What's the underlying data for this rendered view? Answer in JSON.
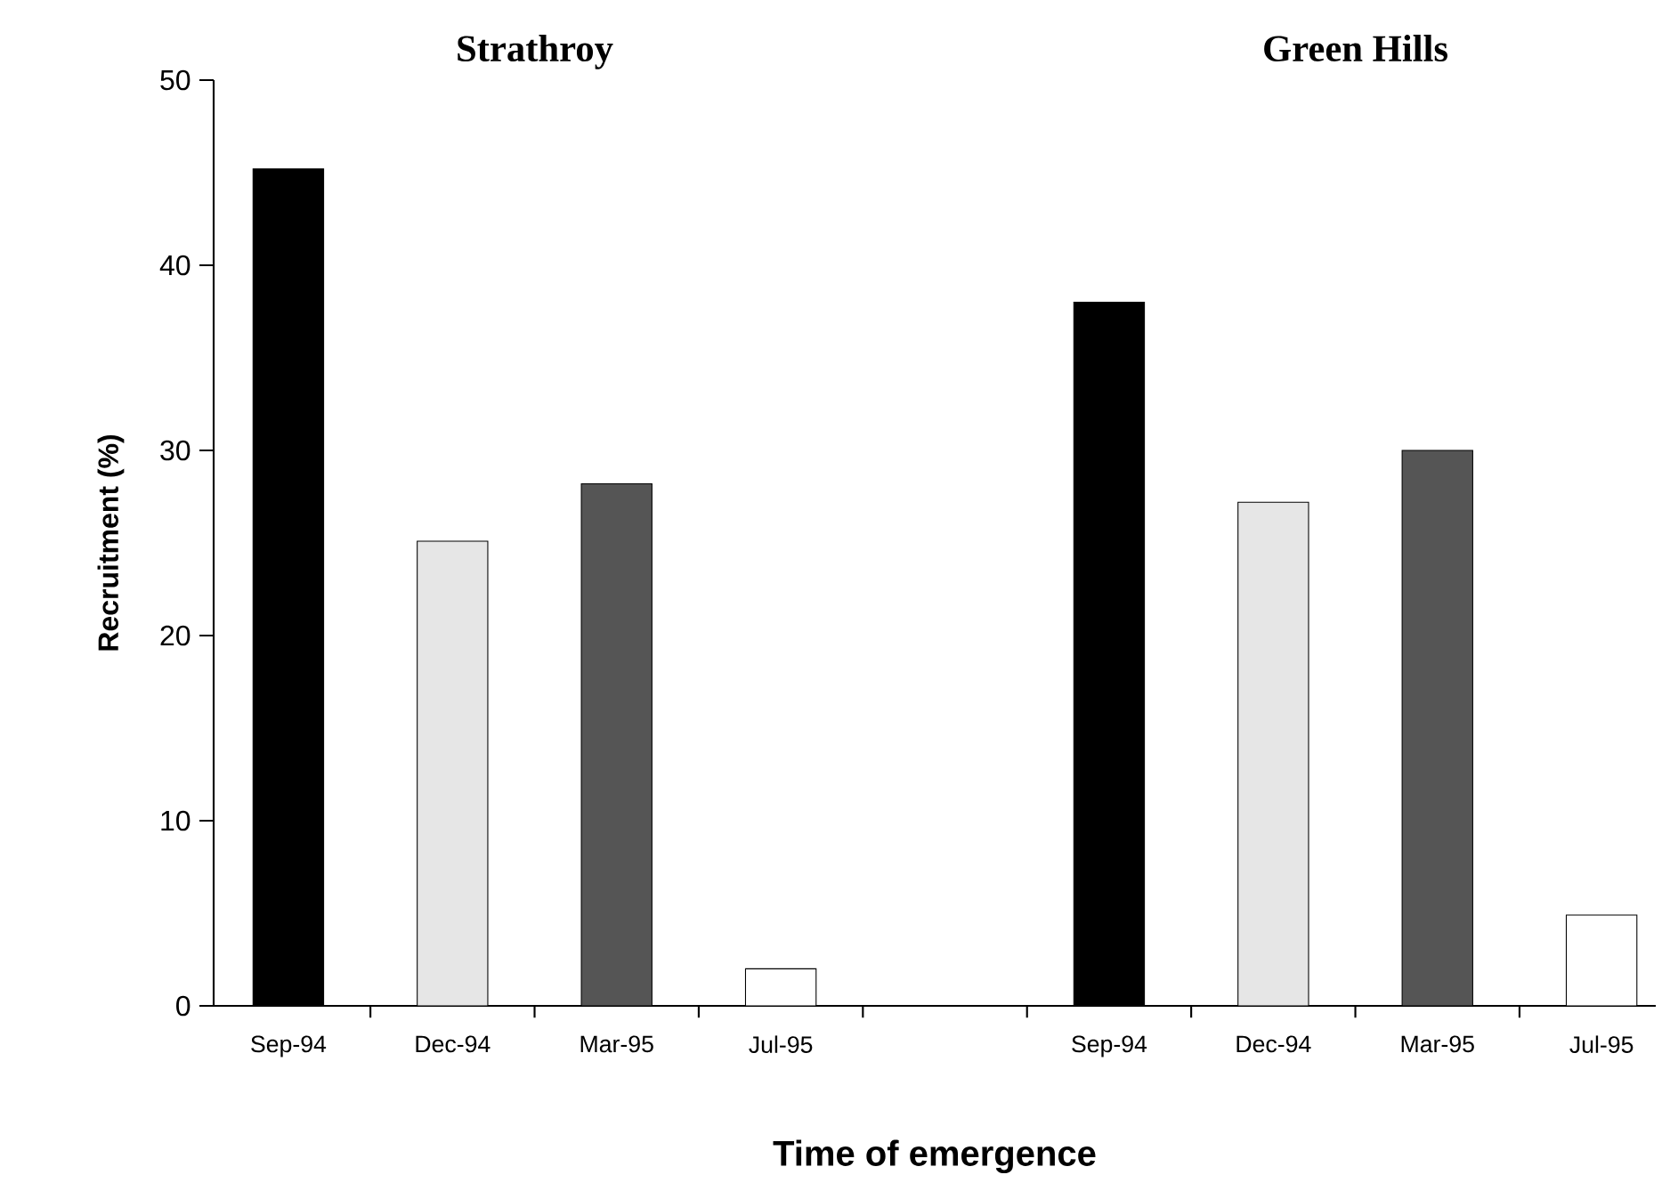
{
  "chart_data": {
    "type": "bar",
    "xlabel": "Time of emergence",
    "ylabel": "Recruitment  (%)",
    "annotations": [
      "Strathroy",
      "Green Hills"
    ],
    "categories": [
      "Sep-94",
      "Dec-94",
      "Mar-95",
      "Jul-95",
      null,
      "Sep-94",
      "Dec-94",
      "Mar-95",
      "Jul-95"
    ],
    "values": [
      45.2,
      25.1,
      28.2,
      2.0,
      null,
      38.0,
      27.2,
      30.0,
      4.9
    ],
    "colors": [
      "#000000",
      "#e6e6e6",
      "#555555",
      "#ffffff",
      null,
      "#000000",
      "#e6e6e6",
      "#555555",
      "#ffffff"
    ],
    "ylim": [
      0,
      50
    ],
    "yticks": [
      0,
      10,
      20,
      30,
      40,
      50
    ]
  }
}
